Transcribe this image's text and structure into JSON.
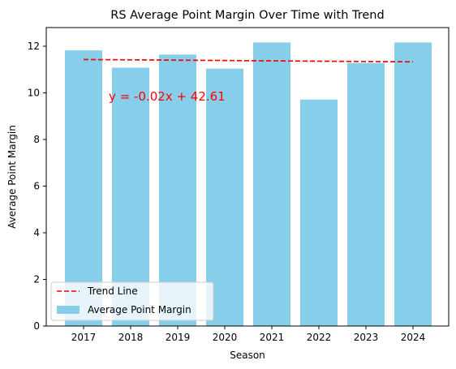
{
  "chart_data": {
    "type": "bar",
    "title": "RS Average Point Margin Over Time with Trend",
    "xlabel": "Season",
    "ylabel": "Average Point Margin",
    "categories": [
      "2017",
      "2018",
      "2019",
      "2020",
      "2021",
      "2022",
      "2023",
      "2024"
    ],
    "series": [
      {
        "name": "Average Point Margin",
        "values": [
          11.82,
          11.08,
          11.64,
          11.04,
          12.16,
          9.71,
          11.28,
          12.16
        ],
        "color": "#87ceeb"
      }
    ],
    "trend": {
      "name": "Trend Line",
      "start": 11.43,
      "end": 11.33,
      "color": "#ff0000",
      "style": "dashed",
      "equation": "y = -0.02x + 42.61"
    },
    "ylim": [
      0,
      12.8
    ],
    "yticks": [
      "0",
      "2",
      "4",
      "6",
      "8",
      "10",
      "12"
    ],
    "grid": false,
    "legend": {
      "placement": "lower-left",
      "entries": [
        "Trend Line",
        "Average Point Margin"
      ]
    }
  }
}
